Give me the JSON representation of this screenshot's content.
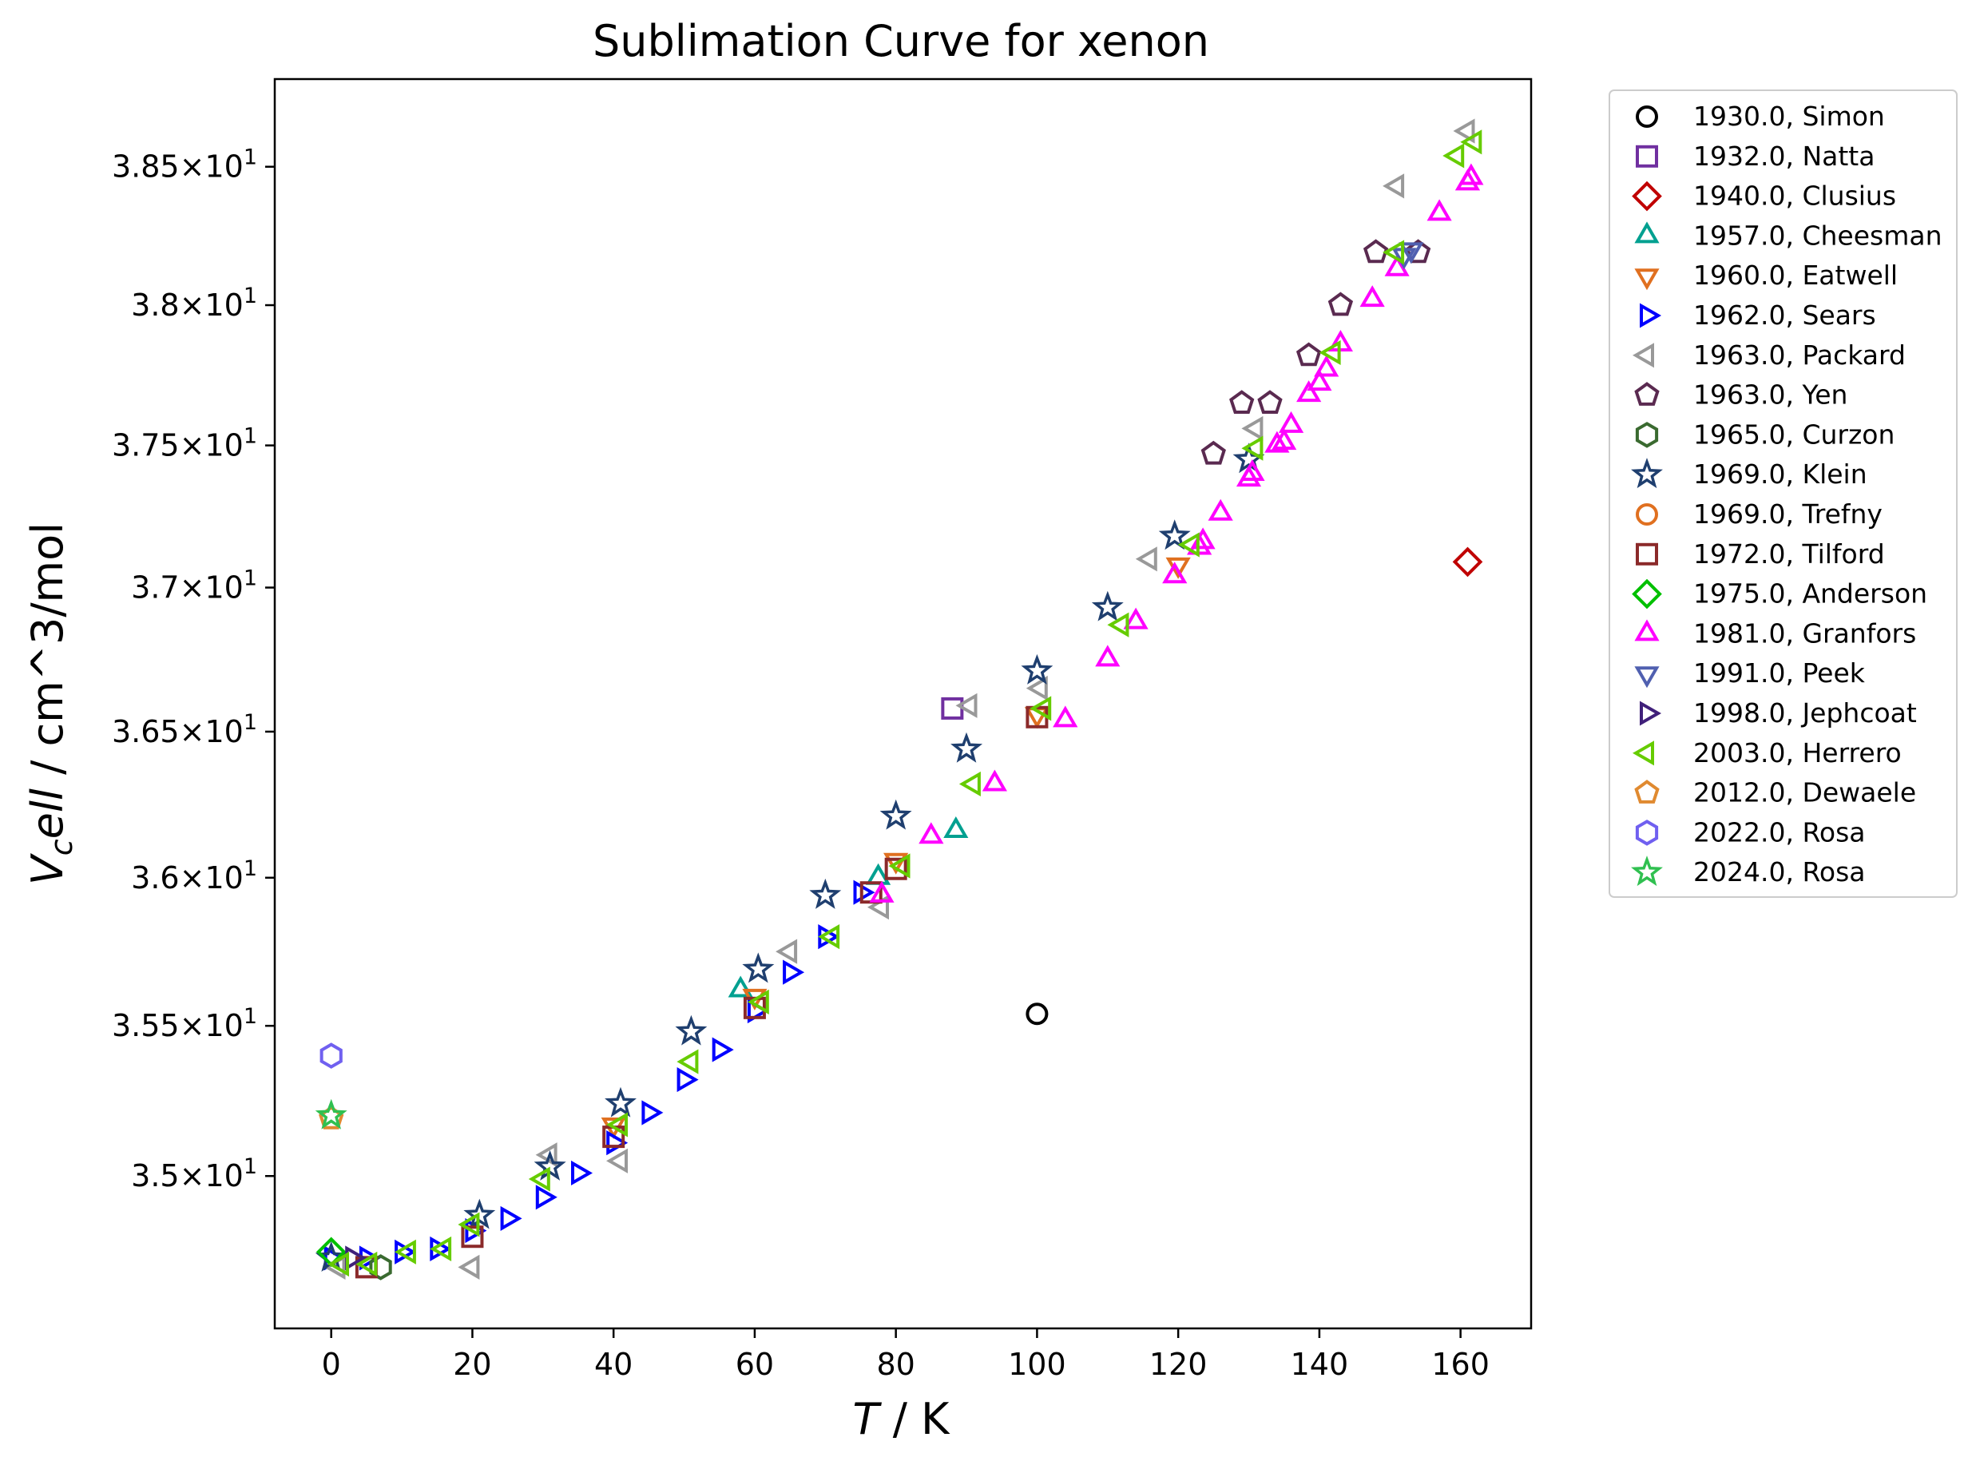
{
  "chart_data": {
    "type": "scatter",
    "title": "Sublimation Curve for xenon",
    "xlabel_main": "T",
    "xlabel_unit": " / K",
    "ylabel_main": "V",
    "ylabel_sub": "c",
    "ylabel_rest": "ell",
    "ylabel_unit": " / cm^3/mol",
    "x_ticks": [
      0,
      20,
      40,
      60,
      80,
      100,
      120,
      140,
      160
    ],
    "y_ticks": [
      {
        "value": 35.0,
        "label_mant": "3.5",
        "label_exp": "1"
      },
      {
        "value": 35.5,
        "label_mant": "3.55",
        "label_exp": "1"
      },
      {
        "value": 36.0,
        "label_mant": "3.6",
        "label_exp": "1"
      },
      {
        "value": 36.5,
        "label_mant": "3.65",
        "label_exp": "1"
      },
      {
        "value": 37.0,
        "label_mant": "3.7",
        "label_exp": "1"
      },
      {
        "value": 37.5,
        "label_mant": "3.75",
        "label_exp": "1"
      },
      {
        "value": 38.0,
        "label_mant": "3.8",
        "label_exp": "1"
      },
      {
        "value": 38.5,
        "label_mant": "3.85",
        "label_exp": "1"
      }
    ],
    "xlim": [
      -8,
      170
    ],
    "ylim": [
      34.5,
      38.82
    ],
    "log_scale_y": true,
    "grid": false,
    "legend_position": "outside-right",
    "series": [
      {
        "name": "1930.0, Simon",
        "marker": "circle",
        "color": "#000000",
        "points": [
          [
            100,
            35.54
          ]
        ]
      },
      {
        "name": "1932.0, Natta",
        "marker": "square",
        "color": "#7030a0",
        "points": [
          [
            88,
            36.58
          ]
        ]
      },
      {
        "name": "1940.0, Clusius",
        "marker": "diamond",
        "color": "#c00000",
        "points": [
          [
            161,
            37.09
          ]
        ]
      },
      {
        "name": "1957.0, Cheesman",
        "marker": "triangle-up",
        "color": "#00a090",
        "points": [
          [
            58,
            35.62
          ],
          [
            77.5,
            36.0
          ],
          [
            88.5,
            36.16
          ]
        ]
      },
      {
        "name": "1960.0, Eatwell",
        "marker": "triangle-down",
        "color": "#e07020",
        "points": [
          [
            40,
            35.17
          ],
          [
            60,
            35.6
          ],
          [
            80,
            36.06
          ],
          [
            100,
            36.56
          ],
          [
            120,
            37.08
          ]
        ]
      },
      {
        "name": "1962.0, Sears",
        "marker": "triangle-right",
        "color": "#0000ff",
        "points": [
          [
            0,
            34.73
          ],
          [
            5,
            34.73
          ],
          [
            10,
            34.75
          ],
          [
            15,
            34.76
          ],
          [
            20,
            34.82
          ],
          [
            25,
            34.86
          ],
          [
            30,
            34.93
          ],
          [
            35,
            35.01
          ],
          [
            40,
            35.11
          ],
          [
            45,
            35.21
          ],
          [
            50,
            35.32
          ],
          [
            55,
            35.42
          ],
          [
            60,
            35.55
          ],
          [
            65,
            35.68
          ],
          [
            70,
            35.8
          ],
          [
            75,
            35.95
          ]
        ]
      },
      {
        "name": "1963.0, Packard",
        "marker": "triangle-left",
        "color": "#999999",
        "points": [
          [
            1,
            34.7
          ],
          [
            20,
            34.7
          ],
          [
            31,
            35.07
          ],
          [
            41,
            35.05
          ],
          [
            65,
            35.75
          ],
          [
            78,
            35.9
          ],
          [
            90.5,
            36.59
          ],
          [
            100.5,
            36.65
          ],
          [
            116,
            37.1
          ],
          [
            131,
            37.56
          ],
          [
            151,
            38.43
          ],
          [
            161,
            38.63
          ]
        ]
      },
      {
        "name": "1963.0, Yen",
        "marker": "pentagon",
        "color": "#5a2a50",
        "points": [
          [
            125,
            37.47
          ],
          [
            129,
            37.65
          ],
          [
            133,
            37.65
          ],
          [
            138.5,
            37.82
          ],
          [
            143,
            38.0
          ],
          [
            148,
            38.19
          ],
          [
            154,
            38.19
          ]
        ]
      },
      {
        "name": "1965.0, Curzon",
        "marker": "hexagon",
        "color": "#3a6a30",
        "points": [
          [
            7,
            34.7
          ]
        ]
      },
      {
        "name": "1969.0, Klein",
        "marker": "star",
        "color": "#1f3f6f",
        "points": [
          [
            0,
            34.73
          ],
          [
            21,
            34.87
          ],
          [
            31,
            35.03
          ],
          [
            41,
            35.24
          ],
          [
            51,
            35.48
          ],
          [
            60.5,
            35.69
          ],
          [
            70,
            35.94
          ],
          [
            80,
            36.21
          ],
          [
            90,
            36.44
          ],
          [
            100,
            36.71
          ],
          [
            110,
            36.93
          ],
          [
            119.5,
            37.18
          ],
          [
            130,
            37.45
          ]
        ]
      },
      {
        "name": "1969.0, Trefny",
        "marker": "circle",
        "color": "#e07020",
        "points": []
      },
      {
        "name": "1972.0, Tilford",
        "marker": "square",
        "color": "#8b2a2a",
        "points": [
          [
            5,
            34.7
          ],
          [
            20,
            34.8
          ],
          [
            40,
            35.13
          ],
          [
            60,
            35.56
          ],
          [
            76.5,
            35.95
          ],
          [
            80,
            36.03
          ],
          [
            100,
            36.55
          ]
        ]
      },
      {
        "name": "1975.0, Anderson",
        "marker": "diamond",
        "color": "#00c000",
        "points": [
          [
            0,
            34.75
          ]
        ]
      },
      {
        "name": "1981.0, Granfors",
        "marker": "triangle-up",
        "color": "#ff00ff",
        "points": [
          [
            78,
            35.94
          ],
          [
            85,
            36.14
          ],
          [
            94,
            36.32
          ],
          [
            104,
            36.54
          ],
          [
            110,
            36.75
          ],
          [
            114,
            36.88
          ],
          [
            119.5,
            37.04
          ],
          [
            123,
            37.14
          ],
          [
            123.5,
            37.16
          ],
          [
            126,
            37.26
          ],
          [
            130,
            37.38
          ],
          [
            130.5,
            37.4
          ],
          [
            134,
            37.5
          ],
          [
            135,
            37.51
          ],
          [
            136,
            37.57
          ],
          [
            138.5,
            37.68
          ],
          [
            140,
            37.72
          ],
          [
            141,
            37.77
          ],
          [
            143,
            37.86
          ],
          [
            147.5,
            38.02
          ],
          [
            151,
            38.13
          ],
          [
            157,
            38.33
          ],
          [
            161,
            38.44
          ],
          [
            161.5,
            38.46
          ]
        ]
      },
      {
        "name": "1991.0, Peek",
        "marker": "triangle-down",
        "color": "#5060b0",
        "points": [
          [
            152,
            38.18
          ],
          [
            153,
            38.2
          ]
        ]
      },
      {
        "name": "1998.0, Jephcoat",
        "marker": "triangle-right",
        "color": "#40207a",
        "points": [
          [
            3,
            34.73
          ]
        ]
      },
      {
        "name": "2003.0, Herrero",
        "marker": "triangle-left",
        "color": "#66cc00",
        "points": [
          [
            1.5,
            34.71
          ],
          [
            5.5,
            34.71
          ],
          [
            11,
            34.75
          ],
          [
            16,
            34.76
          ],
          [
            20,
            34.84
          ],
          [
            30,
            34.99
          ],
          [
            41,
            35.17
          ],
          [
            51,
            35.38
          ],
          [
            61,
            35.58
          ],
          [
            71,
            35.8
          ],
          [
            81,
            36.04
          ],
          [
            91,
            36.32
          ],
          [
            101,
            36.58
          ],
          [
            112,
            36.87
          ],
          [
            122,
            37.15
          ],
          [
            131,
            37.49
          ],
          [
            142,
            37.83
          ],
          [
            151,
            38.19
          ],
          [
            159.5,
            38.54
          ],
          [
            162,
            38.59
          ]
        ]
      },
      {
        "name": "2012.0, Dewaele",
        "marker": "pentagon",
        "color": "#e08a30",
        "points": [
          [
            0,
            35.19
          ]
        ]
      },
      {
        "name": "2022.0, Rosa",
        "marker": "hexagon",
        "color": "#7060f0",
        "points": [
          [
            0,
            35.4
          ]
        ]
      },
      {
        "name": "2024.0, Rosa",
        "marker": "star",
        "color": "#30c050",
        "points": [
          [
            0,
            35.2
          ]
        ]
      }
    ]
  }
}
